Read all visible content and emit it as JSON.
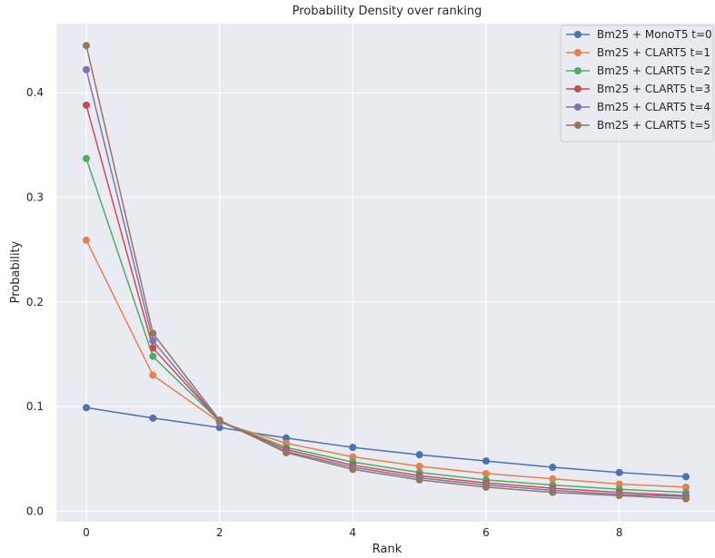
{
  "chart_data": {
    "type": "line",
    "title": "Probability Density over ranking",
    "xlabel": "Rank",
    "ylabel": "Probability",
    "xlim": [
      -0.45,
      9.45
    ],
    "ylim": [
      -0.01,
      0.466
    ],
    "x_ticks": [
      0,
      2,
      4,
      6,
      8
    ],
    "y_ticks": [
      0.0,
      0.1,
      0.2,
      0.3,
      0.4
    ],
    "x_tick_labels": [
      "0",
      "2",
      "4",
      "6",
      "8"
    ],
    "y_tick_labels": [
      "0.0",
      "0.1",
      "0.2",
      "0.3",
      "0.4"
    ],
    "grid": true,
    "legend_position": "top-right",
    "x": [
      0,
      1,
      2,
      3,
      4,
      5,
      6,
      7,
      8,
      9
    ],
    "series": [
      {
        "name": "Bm25 + MonoT5 t=0",
        "color": "#4c72b0",
        "values": [
          0.099,
          0.089,
          0.08,
          0.07,
          0.061,
          0.054,
          0.048,
          0.042,
          0.037,
          0.033
        ]
      },
      {
        "name": "Bm25 + CLART5 t=1",
        "color": "#dd8452",
        "values": [
          0.259,
          0.13,
          0.085,
          0.065,
          0.052,
          0.043,
          0.036,
          0.031,
          0.026,
          0.023
        ]
      },
      {
        "name": "Bm25 + CLART5 t=2",
        "color": "#55a868",
        "values": [
          0.337,
          0.148,
          0.086,
          0.061,
          0.047,
          0.037,
          0.03,
          0.025,
          0.021,
          0.018
        ]
      },
      {
        "name": "Bm25 + CLART5 t=3",
        "color": "#c44e52",
        "values": [
          0.388,
          0.156,
          0.086,
          0.059,
          0.044,
          0.034,
          0.027,
          0.022,
          0.018,
          0.015
        ]
      },
      {
        "name": "Bm25 + CLART5 t=4",
        "color": "#8172b3",
        "values": [
          0.422,
          0.163,
          0.086,
          0.057,
          0.042,
          0.032,
          0.025,
          0.02,
          0.016,
          0.014
        ]
      },
      {
        "name": "Bm25 + CLART5 t=5",
        "color": "#937860",
        "values": [
          0.445,
          0.17,
          0.087,
          0.056,
          0.04,
          0.03,
          0.023,
          0.018,
          0.015,
          0.012
        ]
      }
    ]
  }
}
